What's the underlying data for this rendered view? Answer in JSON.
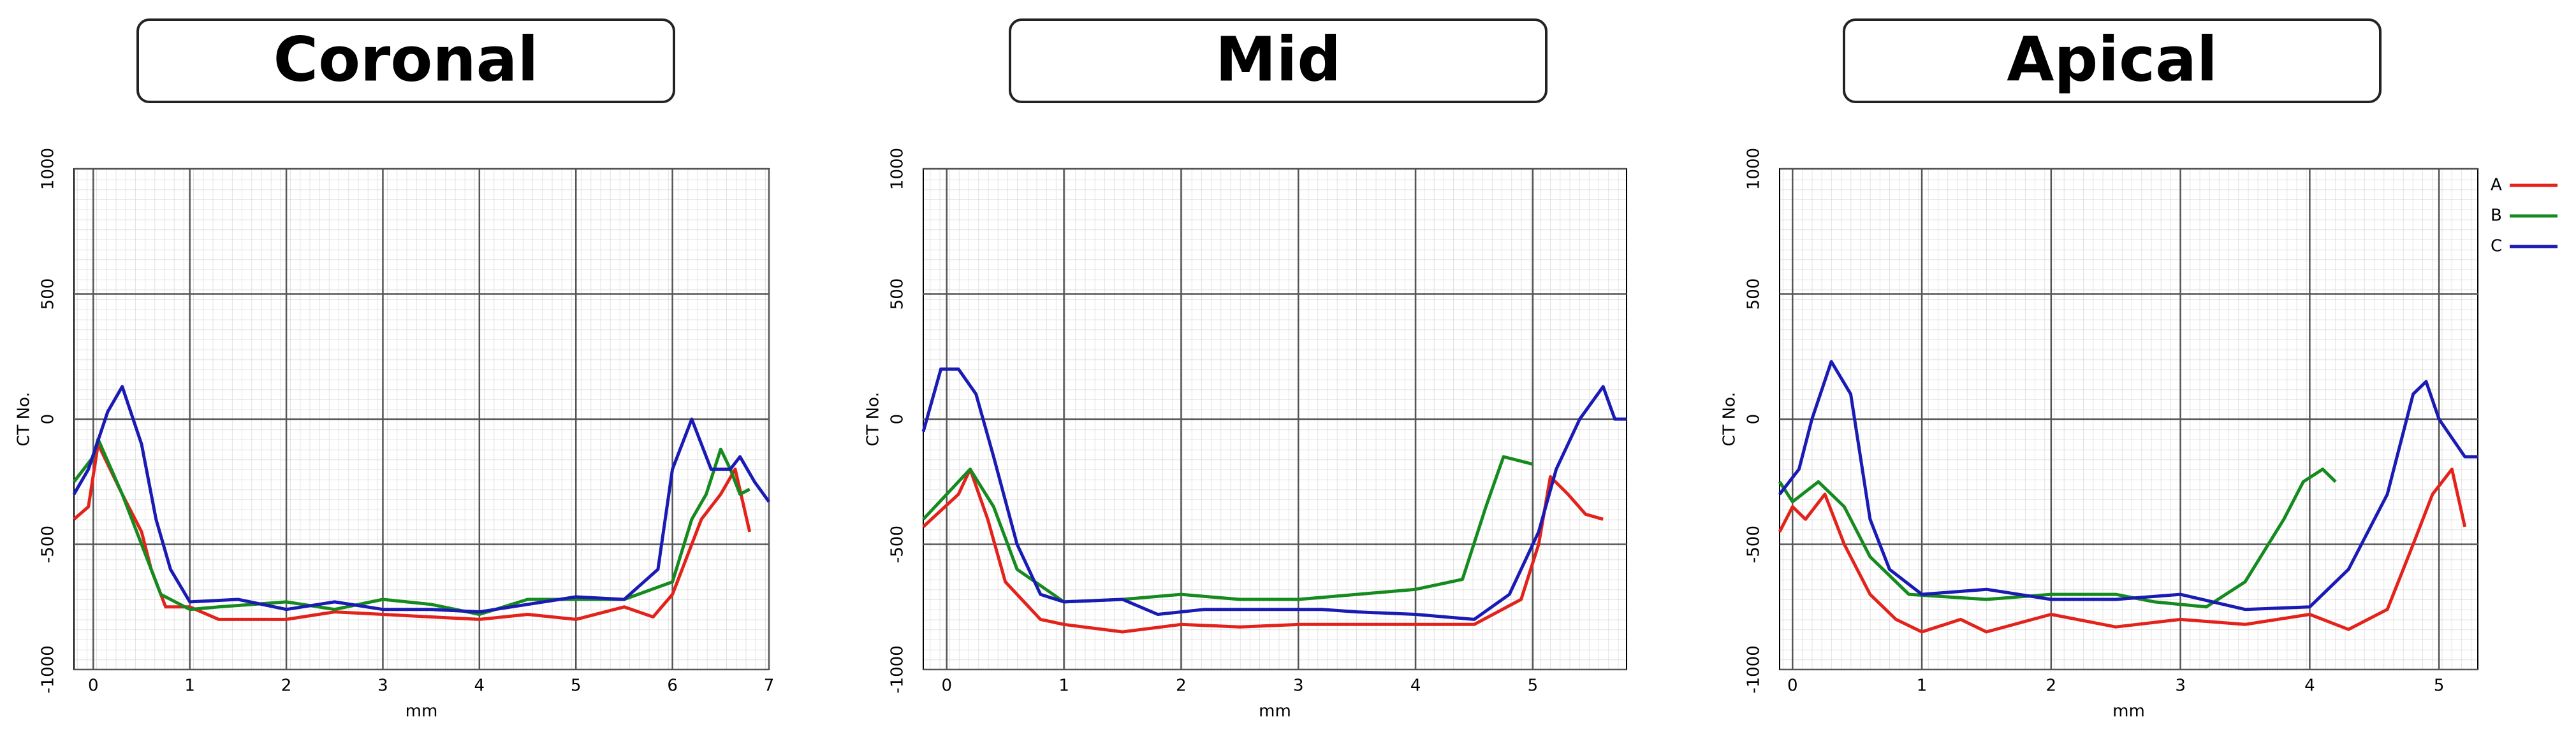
{
  "chart_data": [
    {
      "type": "line",
      "title": "Coronal",
      "xlabel": "mm",
      "ylabel": "CT No.",
      "xlim": [
        -0.2,
        7
      ],
      "xticks": [
        0,
        1,
        2,
        3,
        4,
        5,
        6,
        7
      ],
      "ylim": [
        -1000,
        1000
      ],
      "yticks": [
        -1000,
        -500,
        0,
        500,
        1000
      ],
      "grid": true,
      "series": [
        {
          "name": "A",
          "color": "#e3231b",
          "x": [
            -0.2,
            -0.05,
            0.05,
            0.3,
            0.5,
            0.6,
            0.75,
            1,
            1.3,
            2,
            2.5,
            3,
            3.5,
            4,
            4.5,
            5,
            5.5,
            5.8,
            6,
            6.1,
            6.3,
            6.5,
            6.65,
            6.8
          ],
          "values": [
            -400,
            -350,
            -100,
            -300,
            -450,
            -600,
            -750,
            -750,
            -800,
            -800,
            -770,
            -780,
            -790,
            -800,
            -780,
            -800,
            -750,
            -790,
            -700,
            -600,
            -400,
            -300,
            -200,
            -450
          ]
        },
        {
          "name": "B",
          "color": "#158a1e",
          "x": [
            -0.2,
            0,
            0.05,
            0.3,
            0.5,
            0.7,
            1,
            1.3,
            2,
            2.5,
            3,
            3.5,
            4,
            4.5,
            5,
            5.5,
            6,
            6.2,
            6.35,
            6.5,
            6.6,
            6.7,
            6.8
          ],
          "values": [
            -250,
            -150,
            -80,
            -300,
            -500,
            -700,
            -760,
            -750,
            -730,
            -760,
            -720,
            -740,
            -780,
            -720,
            -720,
            -720,
            -650,
            -400,
            -300,
            -120,
            -200,
            -300,
            -280
          ]
        },
        {
          "name": "C",
          "color": "#1a1ab4",
          "x": [
            -0.2,
            -0.05,
            0.15,
            0.3,
            0.5,
            0.65,
            0.8,
            1,
            1.5,
            2,
            2.5,
            3,
            3.5,
            4,
            4.5,
            5,
            5.5,
            5.85,
            6,
            6.2,
            6.4,
            6.6,
            6.7,
            6.85,
            7
          ],
          "values": [
            -300,
            -200,
            30,
            130,
            -100,
            -400,
            -600,
            -730,
            -720,
            -760,
            -730,
            -760,
            -760,
            -770,
            -740,
            -710,
            -720,
            -600,
            -200,
            0,
            -200,
            -200,
            -150,
            -250,
            -330
          ]
        }
      ]
    },
    {
      "type": "line",
      "title": "Mid",
      "xlabel": "mm",
      "ylabel": "CT No.",
      "xlim": [
        -0.2,
        5.8
      ],
      "xticks": [
        0,
        1,
        2,
        3,
        4,
        5
      ],
      "ylim": [
        -1000,
        1000
      ],
      "yticks": [
        -1000,
        -500,
        0,
        500,
        1000
      ],
      "grid": true,
      "series": [
        {
          "name": "A",
          "color": "#e3231b",
          "x": [
            -0.2,
            0.1,
            0.2,
            0.35,
            0.5,
            0.8,
            1,
            1.5,
            2,
            2.5,
            3,
            3.5,
            4,
            4.5,
            4.9,
            5.05,
            5.15,
            5.3,
            5.45,
            5.6
          ],
          "values": [
            -430,
            -300,
            -200,
            -400,
            -650,
            -800,
            -820,
            -850,
            -820,
            -830,
            -820,
            -820,
            -820,
            -820,
            -720,
            -500,
            -230,
            -300,
            -380,
            -400
          ]
        },
        {
          "name": "B",
          "color": "#158a1e",
          "x": [
            -0.2,
            0,
            0.2,
            0.4,
            0.6,
            1,
            1.5,
            2,
            2.5,
            3,
            3.5,
            4,
            4.4,
            4.6,
            4.75,
            5
          ],
          "values": [
            -400,
            -300,
            -200,
            -350,
            -600,
            -730,
            -720,
            -700,
            -720,
            -720,
            -700,
            -680,
            -640,
            -350,
            -150,
            -180
          ]
        },
        {
          "name": "C",
          "color": "#1a1ab4",
          "x": [
            -0.2,
            -0.05,
            0.1,
            0.25,
            0.4,
            0.6,
            0.8,
            1,
            1.5,
            1.8,
            2.2,
            2.7,
            3.2,
            3.5,
            4,
            4.5,
            4.8,
            5.05,
            5.2,
            5.4,
            5.6,
            5.7,
            5.8
          ],
          "values": [
            -50,
            200,
            200,
            100,
            -150,
            -500,
            -700,
            -730,
            -720,
            -780,
            -760,
            -760,
            -760,
            -770,
            -780,
            -800,
            -700,
            -450,
            -200,
            0,
            130,
            0,
            0
          ]
        }
      ]
    },
    {
      "type": "line",
      "title": "Apical",
      "xlabel": "mm",
      "ylabel": "CT No.",
      "xlim": [
        -0.1,
        5.3
      ],
      "xticks": [
        0,
        1,
        2,
        3,
        4,
        5
      ],
      "ylim": [
        -1000,
        1000
      ],
      "yticks": [
        -1000,
        -500,
        0,
        500,
        1000
      ],
      "grid": true,
      "legend": "right",
      "series": [
        {
          "name": "A",
          "color": "#e3231b",
          "x": [
            -0.1,
            0,
            0.1,
            0.25,
            0.4,
            0.6,
            0.8,
            1,
            1.3,
            1.5,
            2,
            2.5,
            3,
            3.5,
            4,
            4.3,
            4.6,
            4.8,
            4.95,
            5.1,
            5.2
          ],
          "values": [
            -450,
            -350,
            -400,
            -300,
            -500,
            -700,
            -800,
            -850,
            -800,
            -850,
            -780,
            -830,
            -800,
            -820,
            -780,
            -840,
            -760,
            -500,
            -300,
            -200,
            -430
          ]
        },
        {
          "name": "B",
          "color": "#158a1e",
          "x": [
            -0.1,
            0,
            0.2,
            0.4,
            0.6,
            0.9,
            1.5,
            2,
            2.5,
            2.8,
            3.2,
            3.5,
            3.8,
            3.95,
            4.1,
            4.2
          ],
          "values": [
            -250,
            -330,
            -250,
            -350,
            -550,
            -700,
            -720,
            -700,
            -700,
            -730,
            -750,
            -650,
            -400,
            -250,
            -200,
            -250
          ]
        },
        {
          "name": "C",
          "color": "#1a1ab4",
          "x": [
            -0.1,
            0.05,
            0.15,
            0.3,
            0.45,
            0.6,
            0.75,
            1,
            1.5,
            2,
            2.5,
            3,
            3.5,
            4,
            4.3,
            4.6,
            4.8,
            4.9,
            5,
            5.2,
            5.3
          ],
          "values": [
            -300,
            -200,
            0,
            230,
            100,
            -400,
            -600,
            -700,
            -680,
            -720,
            -720,
            -700,
            -760,
            -750,
            -600,
            -300,
            100,
            150,
            0,
            -150,
            -150
          ]
        }
      ]
    }
  ]
}
